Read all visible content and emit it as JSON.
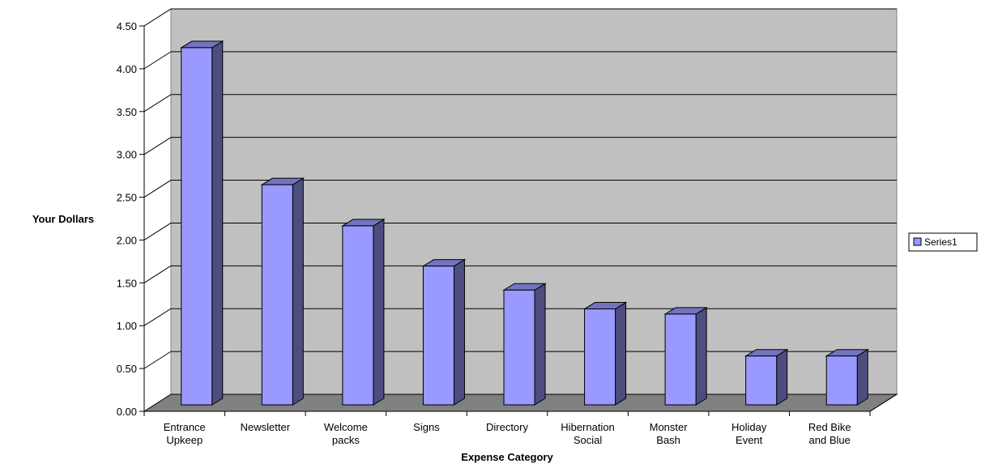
{
  "chart_data": {
    "type": "bar",
    "title": "",
    "xlabel": "Expense Category",
    "ylabel": "Your Dollars",
    "ylim": [
      0,
      4.5
    ],
    "y_ticks": [
      "0.00",
      "0.50",
      "1.00",
      "1.50",
      "2.00",
      "2.50",
      "3.00",
      "3.50",
      "4.00",
      "4.50"
    ],
    "categories": [
      [
        "Entrance",
        "Upkeep"
      ],
      [
        "Newsletter"
      ],
      [
        "Welcome",
        "packs"
      ],
      [
        "Signs"
      ],
      [
        "Directory"
      ],
      [
        "Hibernation",
        "Social"
      ],
      [
        "Monster",
        "Bash"
      ],
      [
        "Holiday",
        "Event"
      ],
      [
        "Red Bike",
        "and Blue"
      ]
    ],
    "series": [
      {
        "name": "Series1",
        "values": [
          4.17,
          2.57,
          2.09,
          1.62,
          1.34,
          1.12,
          1.06,
          0.57,
          0.57
        ],
        "color": "#9999ff"
      }
    ],
    "grid": true,
    "legend_position": "right",
    "style": "3d-column"
  }
}
